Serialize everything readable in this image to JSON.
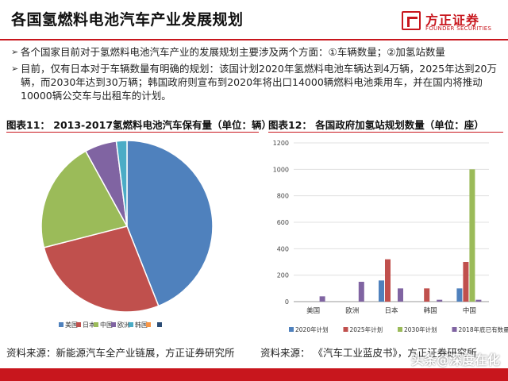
{
  "header": {
    "title": "各国氢燃料电池汽车产业发展规划",
    "logo_cn": "方正证券",
    "logo_en": "FOUNDER SECURITIES"
  },
  "bullets": [
    "各个国家目前对于氢燃料电池汽车产业的发展规划主要涉及两个方面：①车辆数量；②加氢站数量",
    "目前，仅有日本对于车辆数量有明确的规划：该国计划2020年氢燃料电池车辆达到4万辆，2025年达到20万辆，而2030年达到30万辆；韩国政府则宣布到2020年将出口14000辆燃料电池乘用车，并在国内将推动10000辆公交车与出租车的计划。"
  ],
  "panel_left": {
    "title": "图表11：  2013-2017氢燃料电池汽车保有量（单位：辆）",
    "source": "资料来源：新能源汽车全产业链展，方正证券研究所"
  },
  "panel_right": {
    "title": "图表12：  各国政府加氢站规划数量（单位：座）",
    "source": "资料来源：  《汽车工业蓝皮书》，方正证券研究所"
  },
  "watermark": "头条@深度在化",
  "chart_data": [
    {
      "type": "pie",
      "title": "图表11：  2013-2017氢燃料电池汽车保有量（单位：辆）",
      "labels": [
        "美国",
        "日本",
        "中国",
        "欧洲",
        "韩国",
        "",
        ""
      ],
      "values": [
        44,
        27,
        21,
        6,
        2,
        0,
        0
      ],
      "colors": [
        "#4f81bd",
        "#c0504d",
        "#9bbb59",
        "#8064a2",
        "#4bacc6",
        "#f79646",
        "#2c4d75"
      ],
      "legend_position": "bottom"
    },
    {
      "type": "bar",
      "title": "图表12：  各国政府加氢站规划数量（单位：座）",
      "categories": [
        "美国",
        "欧洲",
        "日本",
        "韩国",
        "中国"
      ],
      "series": [
        {
          "name": "2020年计划",
          "color": "#4f81bd",
          "values": [
            null,
            null,
            160,
            null,
            100
          ]
        },
        {
          "name": "2025年计划",
          "color": "#c0504d",
          "values": [
            null,
            null,
            320,
            100,
            300
          ]
        },
        {
          "name": "2030年计划",
          "color": "#9bbb59",
          "values": [
            null,
            null,
            null,
            null,
            1000
          ]
        },
        {
          "name": "2018年底已有数量",
          "color": "#8064a2",
          "values": [
            40,
            150,
            100,
            14,
            14
          ]
        }
      ],
      "yticks": [
        "0",
        "200",
        "400",
        "600",
        "800",
        "1000",
        "1200"
      ],
      "ylim": [
        0,
        1200
      ],
      "grid": true,
      "legend_position": "bottom"
    }
  ]
}
